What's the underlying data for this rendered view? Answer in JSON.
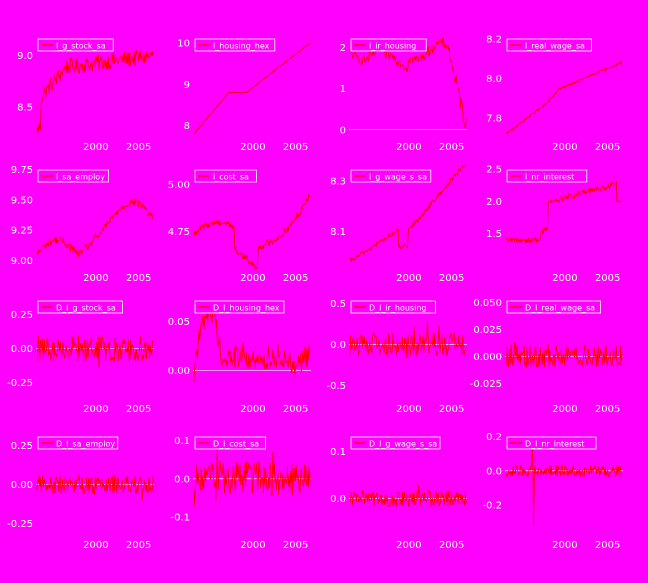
{
  "colors": {
    "background": "#ff00ff",
    "series": "#ff0000",
    "text": "#ffffff",
    "zero_line": "#ffffff"
  },
  "chart_data": [
    {
      "type": "line",
      "legend": "l_g_stock_sa",
      "series": [
        {
          "name": "l_g_stock_sa",
          "x_start": 1993.0,
          "x_end": 2006.5,
          "base": 8.72,
          "slope": 0.012,
          "noise": 0.08,
          "trend": "stock"
        }
      ],
      "x_ticks": [
        2000,
        2005
      ],
      "y_ticks": [
        "9.0",
        "8.5"
      ],
      "y_tick_values": [
        9.0,
        8.5
      ],
      "ylim": [
        8.2,
        9.2
      ],
      "zero_line": false
    },
    {
      "type": "line",
      "legend": "l_housing_hex",
      "series": [
        {
          "name": "l_housing_hex",
          "trend": "housing"
        }
      ],
      "x_ticks": [
        2000,
        2005
      ],
      "y_ticks": [
        "10",
        "9",
        "8"
      ],
      "y_tick_values": [
        10,
        9,
        8
      ],
      "ylim": [
        7.7,
        10.2
      ],
      "zero_line": false
    },
    {
      "type": "line",
      "legend": "l_ir_housing",
      "series": [
        {
          "name": "l_ir_housing",
          "trend": "irh"
        }
      ],
      "x_ticks": [
        2000,
        2005
      ],
      "y_ticks": [
        "2",
        "1",
        "0"
      ],
      "y_tick_values": [
        2,
        1,
        0
      ],
      "ylim": [
        -0.2,
        2.3
      ],
      "zero_line": true
    },
    {
      "type": "line",
      "legend": "l_real_wage_sa",
      "series": [
        {
          "name": "l_real_wage_sa",
          "trend": "wage"
        }
      ],
      "x_ticks": [
        2000,
        2005
      ],
      "y_ticks": [
        "8.2",
        "8.0",
        "7.8"
      ],
      "y_tick_values": [
        8.2,
        8.0,
        7.8
      ],
      "ylim": [
        7.7,
        8.22
      ],
      "zero_line": false
    },
    {
      "type": "line",
      "legend": "l_sa_employ",
      "series": [
        {
          "name": "l_sa_employ",
          "trend": "employ"
        }
      ],
      "x_ticks": [
        2000,
        2005
      ],
      "y_ticks": [
        "9.75",
        "9.50",
        "9.25",
        "9.00"
      ],
      "y_tick_values": [
        9.75,
        9.5,
        9.25,
        9.0
      ],
      "ylim": [
        8.93,
        9.78
      ],
      "zero_line": false
    },
    {
      "type": "line",
      "legend": "l_cost_sa",
      "series": [
        {
          "name": "l_cost_sa",
          "trend": "cost"
        }
      ],
      "x_ticks": [
        2000,
        2005
      ],
      "y_ticks": [
        "5.00",
        "4.75"
      ],
      "y_tick_values": [
        5.0,
        4.75
      ],
      "ylim": [
        4.55,
        5.1
      ],
      "zero_line": false
    },
    {
      "type": "line",
      "legend": "l_g_wage_s_sa",
      "series": [
        {
          "name": "l_g_wage_s_sa",
          "trend": "gwage"
        }
      ],
      "x_ticks": [
        2000,
        2005
      ],
      "y_ticks": [
        "8.3",
        "8.1"
      ],
      "y_tick_values": [
        8.3,
        8.1
      ],
      "ylim": [
        7.95,
        8.36
      ],
      "zero_line": false
    },
    {
      "type": "line",
      "legend": "l_nr_interest",
      "series": [
        {
          "name": "l_nr_interest",
          "trend": "interest"
        }
      ],
      "x_ticks": [
        2000,
        2005
      ],
      "y_ticks": [
        "2.5",
        "2.0",
        "1.5"
      ],
      "y_tick_values": [
        2.5,
        2.0,
        1.5
      ],
      "ylim": [
        0.95,
        2.55
      ],
      "zero_line": false
    },
    {
      "type": "line",
      "legend": "D_l_g_stock_sa",
      "series": [
        {
          "name": "D_l_g_stock_sa",
          "trend": "noise",
          "amp": 0.1
        }
      ],
      "x_ticks": [
        2000,
        2005
      ],
      "y_ticks": [
        "0.25",
        "0.00",
        "-0.25"
      ],
      "y_tick_values": [
        0.25,
        0.0,
        -0.25
      ],
      "ylim": [
        -0.38,
        0.38
      ],
      "zero_line": true
    },
    {
      "type": "line",
      "legend": "D_l_housing_hex",
      "series": [
        {
          "name": "D_l_housing_hex",
          "trend": "dhousing"
        }
      ],
      "x_ticks": [
        2000,
        2005
      ],
      "y_ticks": [
        "0.05",
        "0.00"
      ],
      "y_tick_values": [
        0.05,
        0.0
      ],
      "ylim": [
        -0.03,
        0.075
      ],
      "zero_line": true
    },
    {
      "type": "line",
      "legend": "D_l_ir_housing",
      "series": [
        {
          "name": "D_l_ir_housing",
          "trend": "noise",
          "amp": 0.14
        }
      ],
      "x_ticks": [
        2000,
        2005
      ],
      "y_ticks": [
        "0.5",
        "0.0",
        "-0.5"
      ],
      "y_tick_values": [
        0.5,
        0.0,
        -0.5
      ],
      "ylim": [
        -0.68,
        0.58
      ],
      "zero_line": true
    },
    {
      "type": "line",
      "legend": "D_l_real_wage_sa",
      "series": [
        {
          "name": "D_l_real_wage_sa",
          "trend": "noise",
          "amp": 0.011
        }
      ],
      "x_ticks": [
        2000,
        2005
      ],
      "y_ticks": [
        "0.050",
        "0.025",
        "0.000",
        "-0.025"
      ],
      "y_tick_values": [
        0.05,
        0.025,
        0.0,
        -0.025
      ],
      "ylim": [
        -0.04,
        0.055
      ],
      "zero_line": true
    },
    {
      "type": "line",
      "legend": "D_l_sa_employ",
      "series": [
        {
          "name": "D_l_sa_employ",
          "trend": "noise",
          "amp": 0.06
        }
      ],
      "x_ticks": [
        2000,
        2005
      ],
      "y_ticks": [
        "0.25",
        "0.00",
        "-0.25"
      ],
      "y_tick_values": [
        0.25,
        0.0,
        -0.25
      ],
      "ylim": [
        -0.33,
        0.33
      ],
      "zero_line": true
    },
    {
      "type": "line",
      "legend": "D_l_cost_sa",
      "series": [
        {
          "name": "D_l_cost_sa",
          "trend": "noise",
          "amp": 0.045
        }
      ],
      "x_ticks": [
        2000,
        2005
      ],
      "y_ticks": [
        "0.1",
        "0.0",
        "-0.1"
      ],
      "y_tick_values": [
        0.1,
        0.0,
        -0.1
      ],
      "ylim": [
        -0.15,
        0.12
      ],
      "zero_line": true
    },
    {
      "type": "line",
      "legend": "D_l_g_wage_s_sa",
      "series": [
        {
          "name": "D_l_g_wage_s_sa",
          "trend": "noise",
          "amp": 0.018
        }
      ],
      "x_ticks": [
        2000,
        2005
      ],
      "y_ticks": [
        "0.1",
        "0.0"
      ],
      "y_tick_values": [
        0.1,
        0.0
      ],
      "ylim": [
        -0.08,
        0.14
      ],
      "zero_line": true
    },
    {
      "type": "line",
      "legend": "D_l_nr_interest",
      "series": [
        {
          "name": "D_l_nr_interest",
          "trend": "dinterest"
        }
      ],
      "x_ticks": [
        2000,
        2005
      ],
      "y_ticks": [
        "0.2",
        "0.0",
        "-0.2"
      ],
      "y_tick_values": [
        0.2,
        0.0,
        -0.2
      ],
      "ylim": [
        -0.38,
        0.22
      ],
      "zero_line": true
    }
  ]
}
